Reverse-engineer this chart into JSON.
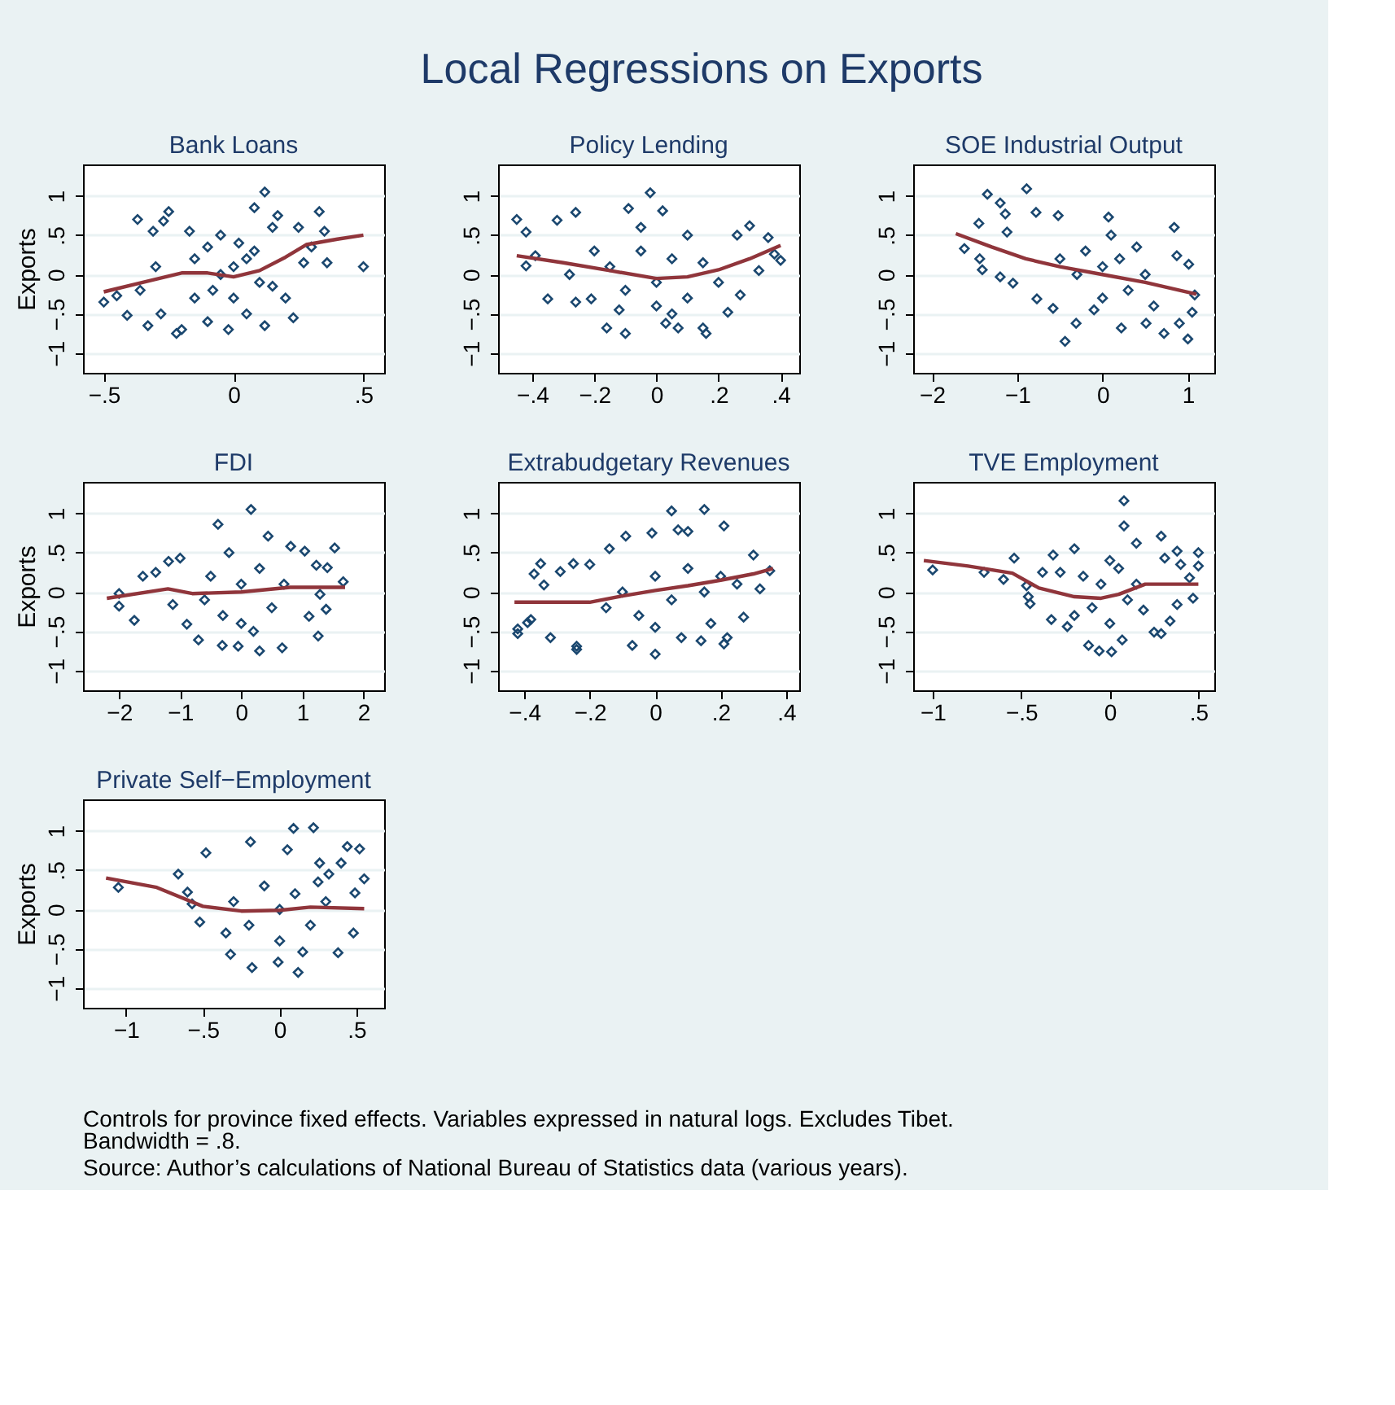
{
  "chart_data": [
    {
      "type": "other",
      "title": "Local Regressions on Exports"
    },
    {
      "type": "scatter",
      "title": "Bank Loans",
      "ylabel": "Exports",
      "xlim": [
        -0.58,
        0.58
      ],
      "ylim": [
        -1.25,
        1.4
      ],
      "xticks": [
        {
          "value": -0.5,
          "label": "−.5"
        },
        0,
        {
          "value": 0.5,
          "label": ".5"
        }
      ],
      "yticks": [
        {
          "value": -1,
          "label": "−1"
        },
        {
          "value": -0.5,
          "label": "−.5"
        },
        0,
        {
          "value": 0.5,
          "label": ".5"
        },
        1
      ],
      "grid": "y",
      "series": [
        {
          "type": "scatter",
          "color": "#1a476f",
          "marker": "diamond",
          "x": [
            -0.5,
            -0.45,
            -0.41,
            -0.37,
            -0.36,
            -0.33,
            -0.31,
            -0.3,
            -0.28,
            -0.27,
            -0.25,
            -0.22,
            -0.2,
            -0.17,
            -0.15,
            -0.1,
            -0.1,
            -0.05,
            -0.02,
            0,
            0,
            0.02,
            0.05,
            0.08,
            0.1,
            0.12,
            0.12,
            0.15,
            0.17,
            0.2,
            0.23,
            0.25,
            0.27,
            0.3,
            0.33,
            0.35,
            0.36,
            0.5,
            -0.05,
            0.05,
            -0.15,
            0.15,
            -0.08,
            0.08
          ],
          "values": [
            -0.35,
            -0.27,
            -0.52,
            0.7,
            -0.2,
            -0.65,
            0.55,
            0.1,
            -0.5,
            0.68,
            0.8,
            -0.75,
            -0.7,
            0.55,
            -0.3,
            0.35,
            -0.6,
            0.5,
            -0.7,
            0.1,
            -0.3,
            0.4,
            -0.5,
            0.85,
            -0.1,
            1.05,
            -0.65,
            0.6,
            0.75,
            -0.3,
            -0.55,
            0.6,
            0.15,
            0.35,
            0.8,
            0.55,
            0.15,
            0.1,
            0.0,
            0.2,
            0.2,
            -0.15,
            -0.2,
            0.3
          ]
        },
        {
          "type": "line",
          "color": "#90353b",
          "x": [
            -0.5,
            -0.35,
            -0.2,
            -0.1,
            0,
            0.1,
            0.2,
            0.28,
            0.4,
            0.5
          ],
          "values": [
            -0.22,
            -0.1,
            0.02,
            0.02,
            -0.03,
            0.05,
            0.22,
            0.38,
            0.45,
            0.5
          ]
        }
      ]
    },
    {
      "type": "scatter",
      "title": "Policy Lending",
      "xlim": [
        -0.51,
        0.46
      ],
      "ylim": [
        -1.25,
        1.4
      ],
      "xticks": [
        {
          "value": -0.4,
          "label": "−.4"
        },
        {
          "value": -0.2,
          "label": "−.2"
        },
        0,
        {
          "value": 0.2,
          "label": ".2"
        },
        {
          "value": 0.4,
          "label": ".4"
        }
      ],
      "yticks": [
        {
          "value": -1,
          "label": "−1"
        },
        {
          "value": -0.5,
          "label": "−.5"
        },
        0,
        {
          "value": 0.5,
          "label": ".5"
        },
        1
      ],
      "grid": "y",
      "series": [
        {
          "type": "scatter",
          "color": "#1a476f",
          "marker": "diamond",
          "x": [
            -0.45,
            -0.42,
            -0.39,
            -0.42,
            -0.35,
            -0.32,
            -0.26,
            -0.26,
            -0.21,
            -0.28,
            -0.16,
            -0.09,
            -0.1,
            -0.02,
            -0.05,
            0.02,
            0.03,
            0.07,
            0.15,
            0.16,
            0.23,
            0.27,
            0.3,
            0.26,
            0.33,
            0.36,
            0.4,
            0.38,
            -0.15,
            -0.1,
            -0.05,
            0,
            0.05,
            0.1,
            0.15,
            0.2,
            0.1,
            -0.2,
            0,
            0.05,
            -0.12
          ],
          "values": [
            0.7,
            0.54,
            0.24,
            0.11,
            -0.31,
            0.69,
            0.79,
            -0.35,
            -0.31,
            0,
            -0.68,
            0.84,
            -0.75,
            1.04,
            0.6,
            0.81,
            -0.62,
            -0.68,
            -0.68,
            -0.75,
            -0.48,
            -0.26,
            0.62,
            0.5,
            0.05,
            0.47,
            0.18,
            0.26,
            0.1,
            -0.2,
            0.3,
            -0.1,
            0.2,
            -0.3,
            0.15,
            -0.1,
            0.5,
            0.3,
            -0.4,
            -0.5,
            -0.45
          ]
        },
        {
          "type": "line",
          "color": "#90353b",
          "x": [
            -0.45,
            -0.3,
            -0.15,
            0,
            0.1,
            0.2,
            0.3,
            0.4
          ],
          "values": [
            0.24,
            0.15,
            0.05,
            -0.05,
            -0.03,
            0.06,
            0.2,
            0.37
          ]
        }
      ]
    },
    {
      "type": "scatter",
      "title": "SOE Industrial Output",
      "xlim": [
        -2.22,
        1.31
      ],
      "ylim": [
        -1.25,
        1.4
      ],
      "xticks": [
        {
          "value": -2,
          "label": "−2"
        },
        {
          "value": -1,
          "label": "−1"
        },
        0,
        1
      ],
      "yticks": [
        {
          "value": -1,
          "label": "−1"
        },
        {
          "value": -0.5,
          "label": "−.5"
        },
        0,
        {
          "value": 0.5,
          "label": ".5"
        },
        1
      ],
      "grid": "y",
      "series": [
        {
          "type": "scatter",
          "color": "#1a476f",
          "marker": "diamond",
          "x": [
            -1.62,
            -1.44,
            -1.41,
            -1.45,
            -1.35,
            -1.2,
            -1.14,
            -1.12,
            -1.2,
            -1.05,
            -0.89,
            -0.78,
            -0.77,
            -0.58,
            -0.52,
            -0.44,
            -0.31,
            0.07,
            0.22,
            0.84,
            0.87,
            0.9,
            1.01,
            1.0,
            1.05,
            1.08,
            0.72,
            0.51,
            -0.5,
            -0.3,
            -0.2,
            0,
            0,
            0.2,
            0.3,
            0.5,
            0.4,
            -0.1,
            0.6,
            0.1
          ],
          "values": [
            0.33,
            0.2,
            0.06,
            0.65,
            1.02,
            0.91,
            0.77,
            0.54,
            -0.03,
            -0.11,
            1.09,
            0.79,
            -0.31,
            -0.43,
            0.75,
            -0.85,
            -0.62,
            0.73,
            -0.68,
            0.6,
            0.24,
            -0.62,
            0.13,
            -0.82,
            -0.48,
            -0.26,
            -0.75,
            -0.62,
            0.2,
            0,
            0.3,
            0.1,
            -0.3,
            0.2,
            -0.2,
            0,
            0.35,
            -0.45,
            -0.4,
            0.5
          ]
        },
        {
          "type": "line",
          "color": "#90353b",
          "x": [
            -1.72,
            -1.3,
            -0.9,
            -0.5,
            0,
            0.5,
            1.1
          ],
          "values": [
            0.52,
            0.35,
            0.2,
            0.1,
            0,
            -0.1,
            -0.25
          ]
        }
      ]
    },
    {
      "type": "scatter",
      "title": "FDI",
      "ylabel": "Exports",
      "xlim": [
        -2.59,
        2.34
      ],
      "ylim": [
        -1.25,
        1.4
      ],
      "xticks": [
        {
          "value": -2,
          "label": "−2"
        },
        {
          "value": -1,
          "label": "−1"
        },
        0,
        1,
        2
      ],
      "yticks": [
        {
          "value": -1,
          "label": "−1"
        },
        {
          "value": -0.5,
          "label": "−.5"
        },
        0,
        {
          "value": 0.5,
          "label": ".5"
        },
        1
      ],
      "grid": "y",
      "series": [
        {
          "type": "scatter",
          "color": "#1a476f",
          "marker": "diamond",
          "x": [
            -2,
            -2,
            -1.75,
            -1.61,
            -1.4,
            -1.19,
            -1.0,
            -1.12,
            -0.89,
            -0.7,
            -0.38,
            -0.31,
            -0.05,
            0.16,
            0.3,
            0.44,
            0.67,
            0.81,
            1.04,
            1.11,
            1.23,
            1.26,
            1.39,
            1.41,
            1.53,
            1.67,
            1.29,
            -0.5,
            -0.3,
            0,
            0,
            0.3,
            0.5,
            0.2,
            -0.2,
            0.7,
            -0.6
          ],
          "values": [
            -0.02,
            -0.18,
            -0.36,
            0.2,
            0.25,
            0.39,
            0.43,
            -0.16,
            -0.41,
            -0.61,
            0.86,
            -0.68,
            -0.69,
            1.05,
            -0.75,
            0.71,
            -0.71,
            0.58,
            0.52,
            -0.31,
            0.34,
            -0.56,
            -0.22,
            0.31,
            0.56,
            0.13,
            -0.03,
            0.2,
            -0.3,
            0.1,
            -0.4,
            0.3,
            -0.2,
            -0.5,
            0.5,
            0.1,
            -0.1
          ]
        },
        {
          "type": "line",
          "color": "#90353b",
          "x": [
            -2.2,
            -1.2,
            -0.8,
            0,
            0.8,
            1.7
          ],
          "values": [
            -0.08,
            0.04,
            -0.02,
            0,
            0.06,
            0.06
          ]
        }
      ]
    },
    {
      "type": "scatter",
      "title": "Extrabudgetary Revenues",
      "xlim": [
        -0.48,
        0.44
      ],
      "ylim": [
        -1.25,
        1.4
      ],
      "xticks": [
        {
          "value": -0.4,
          "label": "−.4"
        },
        {
          "value": -0.2,
          "label": "−.2"
        },
        0,
        {
          "value": 0.2,
          "label": ".2"
        },
        {
          "value": 0.4,
          "label": ".4"
        }
      ],
      "yticks": [
        {
          "value": -1,
          "label": "−1"
        },
        {
          "value": -0.5,
          "label": "−.5"
        },
        0,
        {
          "value": 0.5,
          "label": ".5"
        },
        1
      ],
      "grid": "y",
      "series": [
        {
          "type": "scatter",
          "color": "#1a476f",
          "marker": "diamond",
          "x": [
            -0.42,
            -0.42,
            -0.39,
            -0.38,
            -0.37,
            -0.35,
            -0.34,
            -0.32,
            -0.29,
            -0.24,
            -0.24,
            -0.25,
            -0.2,
            -0.14,
            -0.09,
            -0.07,
            -0.01,
            0,
            0.05,
            0.07,
            0.08,
            0.1,
            0.14,
            0.15,
            0.17,
            0.21,
            0.21,
            0.22,
            0.27,
            0.3,
            0.32,
            0.35,
            -0.1,
            -0.05,
            0,
            0.05,
            0.1,
            0.15,
            0.2,
            -0.15,
            0.25,
            0
          ],
          "values": [
            -0.53,
            -0.47,
            -0.39,
            -0.35,
            0.23,
            0.36,
            0.09,
            -0.58,
            0.26,
            -0.69,
            -0.73,
            0.36,
            0.35,
            0.55,
            0.71,
            -0.68,
            0.75,
            -0.79,
            1.03,
            0.79,
            -0.58,
            0.77,
            -0.62,
            1.05,
            -0.4,
            0.84,
            -0.66,
            -0.58,
            -0.32,
            0.47,
            0.04,
            0.27,
            0,
            -0.3,
            0.2,
            -0.1,
            0.3,
            0,
            0.2,
            -0.2,
            0.1,
            -0.45
          ]
        },
        {
          "type": "line",
          "color": "#90353b",
          "x": [
            -0.43,
            -0.3,
            -0.2,
            -0.1,
            0,
            0.1,
            0.2,
            0.3,
            0.36
          ],
          "values": [
            -0.13,
            -0.13,
            -0.13,
            -0.05,
            0.02,
            0.08,
            0.15,
            0.23,
            0.3
          ]
        }
      ]
    },
    {
      "type": "scatter",
      "title": "TVE Employment",
      "xlim": [
        -1.11,
        0.59
      ],
      "ylim": [
        -1.25,
        1.4
      ],
      "xticks": [
        {
          "value": -1,
          "label": "−1"
        },
        {
          "value": -0.5,
          "label": "−.5"
        },
        0,
        {
          "value": 0.5,
          "label": ".5"
        }
      ],
      "yticks": [
        {
          "value": -1,
          "label": "−1"
        },
        {
          "value": -0.5,
          "label": "−.5"
        },
        0,
        {
          "value": 0.5,
          "label": ".5"
        },
        1
      ],
      "grid": "y",
      "series": [
        {
          "type": "scatter",
          "color": "#1a476f",
          "marker": "diamond",
          "x": [
            -1,
            -0.71,
            -0.6,
            -0.54,
            -0.47,
            -0.46,
            -0.45,
            -0.38,
            -0.32,
            -0.33,
            -0.28,
            -0.2,
            -0.24,
            -0.12,
            -0.06,
            0.01,
            0.08,
            0.08,
            0.07,
            0.15,
            0.19,
            0.25,
            0.29,
            0.29,
            0.31,
            0.34,
            0.38,
            0.4,
            0.38,
            0.45,
            0.47,
            0.5,
            0.5,
            -0.15,
            -0.1,
            -0.05,
            0,
            0.05,
            0.1,
            0,
            -0.2,
            0.15
          ],
          "values": [
            0.28,
            0.25,
            0.16,
            0.43,
            0.08,
            -0.06,
            -0.15,
            0.25,
            0.47,
            -0.35,
            0.25,
            0.55,
            -0.44,
            -0.68,
            -0.75,
            -0.76,
            1.16,
            0.84,
            -0.61,
            0.62,
            -0.23,
            -0.51,
            0.71,
            -0.53,
            0.43,
            -0.37,
            0.52,
            0.35,
            -0.16,
            0.18,
            -0.08,
            0.5,
            0.33,
            0.2,
            -0.2,
            0.1,
            -0.4,
            0.3,
            -0.1,
            0.4,
            -0.3,
            0.1
          ]
        },
        {
          "type": "line",
          "color": "#90353b",
          "x": [
            -1.05,
            -0.8,
            -0.55,
            -0.4,
            -0.2,
            -0.05,
            0.05,
            0.2,
            0.35,
            0.5
          ],
          "values": [
            0.4,
            0.33,
            0.24,
            0.05,
            -0.06,
            -0.08,
            -0.03,
            0.1,
            0.1,
            0.1
          ]
        }
      ]
    },
    {
      "type": "scatter",
      "title": "Private Self−Employment",
      "ylabel": "Exports",
      "xlim": [
        -1.28,
        0.68
      ],
      "ylim": [
        -1.25,
        1.4
      ],
      "xticks": [
        {
          "value": -1,
          "label": "−1"
        },
        {
          "value": -0.5,
          "label": "−.5"
        },
        0,
        {
          "value": 0.5,
          "label": ".5"
        }
      ],
      "yticks": [
        {
          "value": -1,
          "label": "−1"
        },
        {
          "value": -0.5,
          "label": "−.5"
        },
        0,
        {
          "value": 0.5,
          "label": ".5"
        },
        1
      ],
      "grid": "y",
      "series": [
        {
          "type": "scatter",
          "color": "#1a476f",
          "marker": "diamond",
          "x": [
            -1.05,
            -0.66,
            -0.6,
            -0.57,
            -0.52,
            -0.48,
            -0.32,
            -0.19,
            -0.18,
            -0.01,
            0.05,
            0.09,
            0.12,
            0.15,
            0.22,
            0.26,
            0.32,
            0.38,
            0.4,
            0.44,
            0.52,
            0.55,
            0.49,
            0.48,
            -0.3,
            -0.2,
            -0.1,
            0,
            0,
            0.1,
            0.2,
            0.3,
            -0.35,
            0.25
          ],
          "values": [
            0.28,
            0.45,
            0.22,
            0.07,
            -0.16,
            0.72,
            -0.57,
            0.86,
            -0.74,
            -0.67,
            0.76,
            1.03,
            -0.8,
            -0.54,
            1.04,
            0.59,
            0.45,
            -0.55,
            0.59,
            0.8,
            0.77,
            0.39,
            0.21,
            -0.3,
            0.1,
            -0.2,
            0.3,
            0,
            -0.4,
            0.2,
            -0.2,
            0.1,
            -0.3,
            0.35
          ]
        },
        {
          "type": "line",
          "color": "#90353b",
          "x": [
            -1.13,
            -0.8,
            -0.5,
            -0.25,
            0,
            0.2,
            0.55
          ],
          "values": [
            0.4,
            0.28,
            0.04,
            -0.02,
            -0.01,
            0.03,
            0.01
          ]
        }
      ]
    },
    {
      "type": "other",
      "annotations": [
        "Controls for province fixed effects. Variables expressed in natural logs. Excludes Tibet.\nBandwidth = .8.",
        "Source: Author’s calculations of National Bureau of Statistics data (various years)."
      ]
    }
  ]
}
